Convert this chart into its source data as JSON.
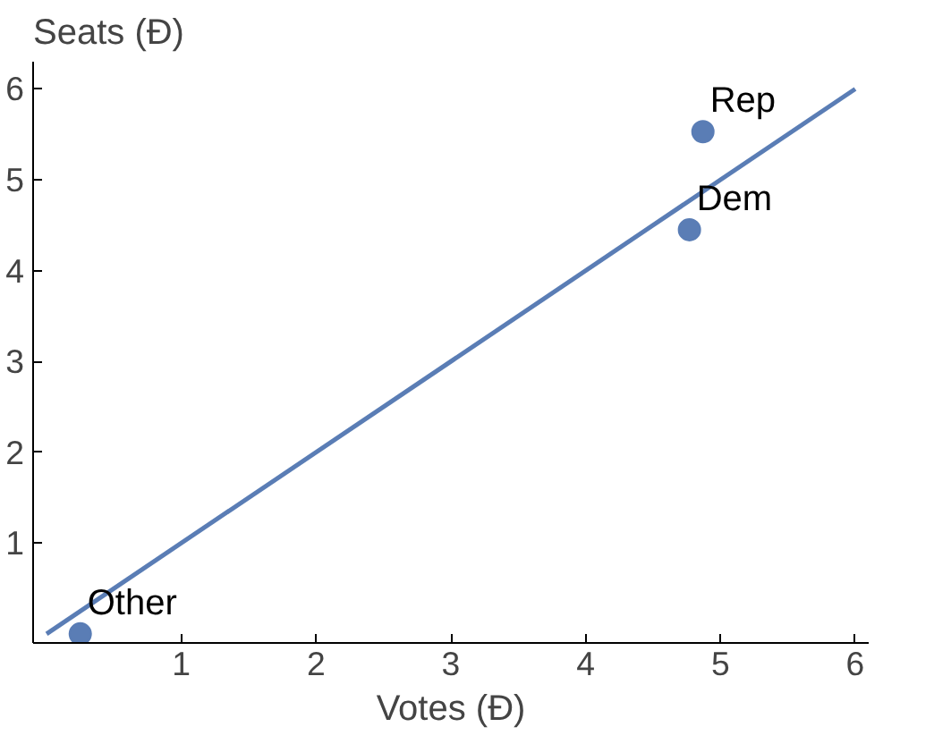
{
  "chart_data": {
    "type": "scatter",
    "xlabel": "Votes (Đ)",
    "ylabel": "Seats (Đ)",
    "xlim": [
      -0.1,
      6.1
    ],
    "ylim": [
      -0.1,
      6.3
    ],
    "xticks": [
      1,
      2,
      3,
      4,
      5,
      6
    ],
    "yticks": [
      1,
      2,
      3,
      4,
      5,
      6
    ],
    "grid": false,
    "marker": "circle",
    "series": [
      {
        "type": "line",
        "marker": "none",
        "color": "#5a7db5",
        "x": [
          0,
          6
        ],
        "values": [
          0,
          6
        ]
      },
      {
        "name": "Rep",
        "color": "#5a7db5",
        "x": [
          4.87
        ],
        "values": [
          5.53
        ]
      },
      {
        "name": "Dem",
        "color": "#5a7db5",
        "x": [
          4.77
        ],
        "values": [
          4.45
        ]
      },
      {
        "name": "Other",
        "color": "#5a7db5",
        "x": [
          0.25
        ],
        "values": [
          0
        ]
      }
    ]
  }
}
